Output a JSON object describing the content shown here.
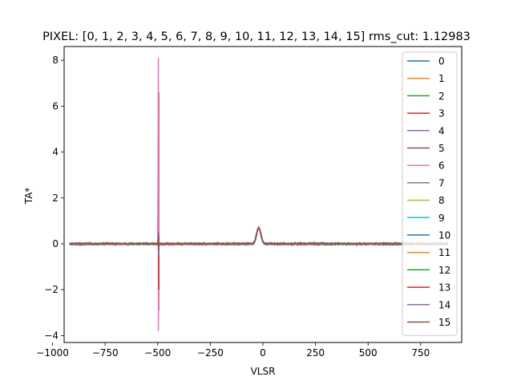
{
  "chart_data": {
    "type": "line",
    "title": "PIXEL: [0, 1, 2, 3, 4, 5, 6, 7, 8, 9, 10, 11, 12, 13, 14, 15]   rms_cut: 1.12983",
    "xlabel": "VLSR",
    "ylabel": "TA*",
    "xlim": [
      -945,
      945
    ],
    "ylim": [
      -4.3,
      8.6
    ],
    "xticks": [
      -1000,
      -750,
      -500,
      -250,
      0,
      250,
      500,
      750
    ],
    "xtick_labels": [
      "−1000",
      "−750",
      "−500",
      "−250",
      "0",
      "250",
      "500",
      "750"
    ],
    "yticks": [
      -4,
      -2,
      0,
      2,
      4,
      6,
      8
    ],
    "ytick_labels": [
      "−4",
      "−2",
      "0",
      "2",
      "4",
      "6",
      "8"
    ],
    "grid": false,
    "legend_position": "top-right",
    "x_range": [
      -920,
      880
    ],
    "noise_rms": 0.05,
    "line_feature": {
      "center": -20,
      "peak": 0.7,
      "width": 10
    },
    "series": [
      {
        "name": "0",
        "color": "#1f77b4",
        "spike": {
          "x": -495,
          "min": -0.5,
          "max": 0.5
        }
      },
      {
        "name": "1",
        "color": "#ff7f0e",
        "spike": {
          "x": -495,
          "min": -0.3,
          "max": 0.4
        }
      },
      {
        "name": "2",
        "color": "#2ca02c",
        "spike": {
          "x": -495,
          "min": -0.3,
          "max": 0.3
        }
      },
      {
        "name": "3",
        "color": "#d62728",
        "spike": {
          "x": -495,
          "min": -2.9,
          "max": 6.6
        }
      },
      {
        "name": "4",
        "color": "#9467bd",
        "spike": {
          "x": -497,
          "min": -1.5,
          "max": 3.0
        }
      },
      {
        "name": "5",
        "color": "#8c564b",
        "spike": {
          "x": -495,
          "min": -0.4,
          "max": 0.4
        }
      },
      {
        "name": "6",
        "color": "#e377c2",
        "spike": {
          "x": -497,
          "min": -3.8,
          "max": 8.1
        }
      },
      {
        "name": "7",
        "color": "#7f7f7f",
        "spike": {
          "x": -495,
          "min": -0.3,
          "max": 0.3
        }
      },
      {
        "name": "8",
        "color": "#bcbd22",
        "spike": {
          "x": -495,
          "min": -0.3,
          "max": 0.3
        }
      },
      {
        "name": "9",
        "color": "#17becf",
        "spike": {
          "x": -495,
          "min": -0.3,
          "max": 0.3
        }
      },
      {
        "name": "10",
        "color": "#1f77b4",
        "spike": {
          "x": -495,
          "min": -0.3,
          "max": 0.3
        }
      },
      {
        "name": "11",
        "color": "#ff7f0e",
        "spike": {
          "x": -495,
          "min": -0.3,
          "max": 0.3
        }
      },
      {
        "name": "12",
        "color": "#2ca02c",
        "spike": {
          "x": -495,
          "min": -0.3,
          "max": 0.3
        }
      },
      {
        "name": "13",
        "color": "#d62728",
        "spike": {
          "x": -495,
          "min": -2.0,
          "max": 0.5
        }
      },
      {
        "name": "14",
        "color": "#9467bd",
        "spike": {
          "x": -495,
          "min": -0.5,
          "max": 0.5
        }
      },
      {
        "name": "15",
        "color": "#8c564b",
        "spike": {
          "x": -495,
          "min": -0.3,
          "max": 0.3
        }
      }
    ]
  }
}
